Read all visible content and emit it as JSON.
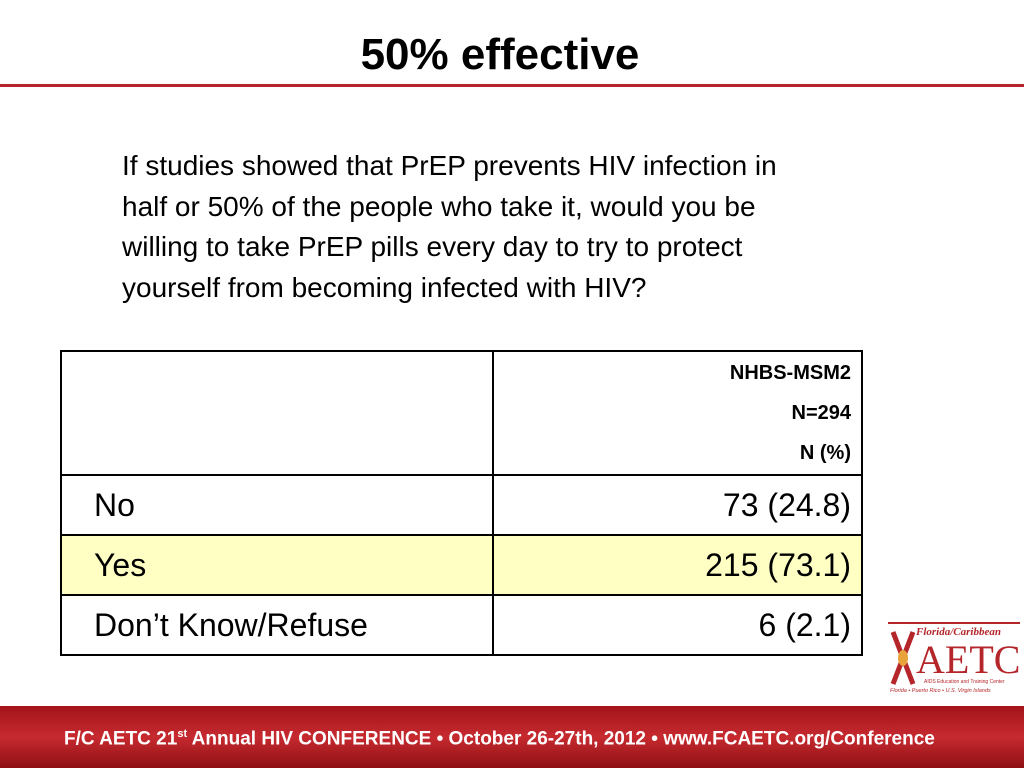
{
  "header": {
    "title": "50% effective"
  },
  "question": {
    "lines": [
      "If studies showed that PrEP prevents HIV infection in",
      "half or 50% of the people who take it, would you be",
      "willing to take PrEP pills every day to try to protect",
      "yourself from becoming infected with HIV?"
    ]
  },
  "table": {
    "header": [
      "NHBS-MSM2",
      "N=294",
      "N (%)"
    ],
    "rows": [
      [
        "No",
        "73 (24.8)"
      ],
      [
        "Yes",
        "215 (73.1)"
      ],
      [
        "Don’t Know/Refuse",
        "6 (2.1)"
      ]
    ]
  },
  "logo": {
    "top": "Florida/Caribbean",
    "name": "AETC",
    "sub": "AIDS Education and Training Center",
    "places": "Florida • Puerto Rico • U.S. Virgin Islands"
  },
  "footer": {
    "before": "F/C AETC 21",
    "sup": "st",
    "after": " Annual HIV CONFERENCE • October 26-27th, 2012 • www.FCAETC.org/Conference"
  }
}
